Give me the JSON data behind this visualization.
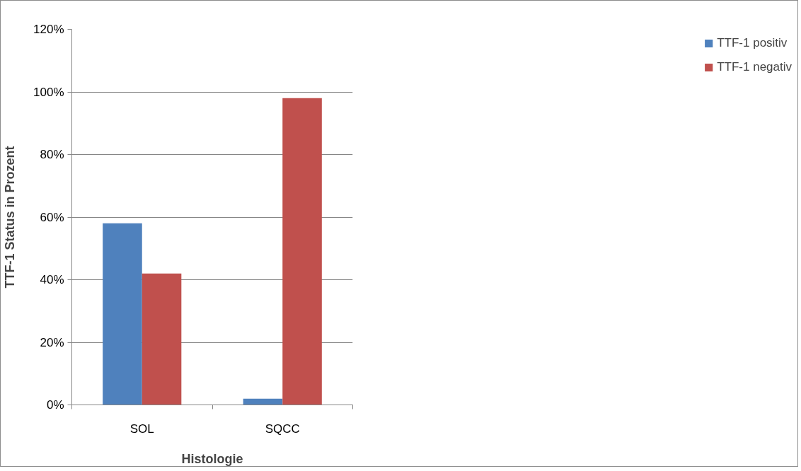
{
  "chart_data": {
    "type": "bar",
    "xlabel": "Histologie",
    "ylabel": "TTF-1 Status in Prozent",
    "categories": [
      "SOL",
      "SQCC"
    ],
    "series": [
      {
        "name": "TTF-1 positiv",
        "color": "#4f81bd",
        "values": [
          58,
          2
        ]
      },
      {
        "name": "TTF-1 negativ",
        "color": "#c0504d",
        "values": [
          42,
          98
        ]
      }
    ],
    "ylim": [
      0,
      120
    ],
    "yticks": [
      {
        "value": 0,
        "label": "0%"
      },
      {
        "value": 20,
        "label": "20%"
      },
      {
        "value": 40,
        "label": "40%"
      },
      {
        "value": 60,
        "label": "60%"
      },
      {
        "value": 80,
        "label": "80%"
      },
      {
        "value": 100,
        "label": "100%"
      },
      {
        "value": 120,
        "label": "120%"
      }
    ],
    "grid": "y",
    "legend": "right"
  }
}
